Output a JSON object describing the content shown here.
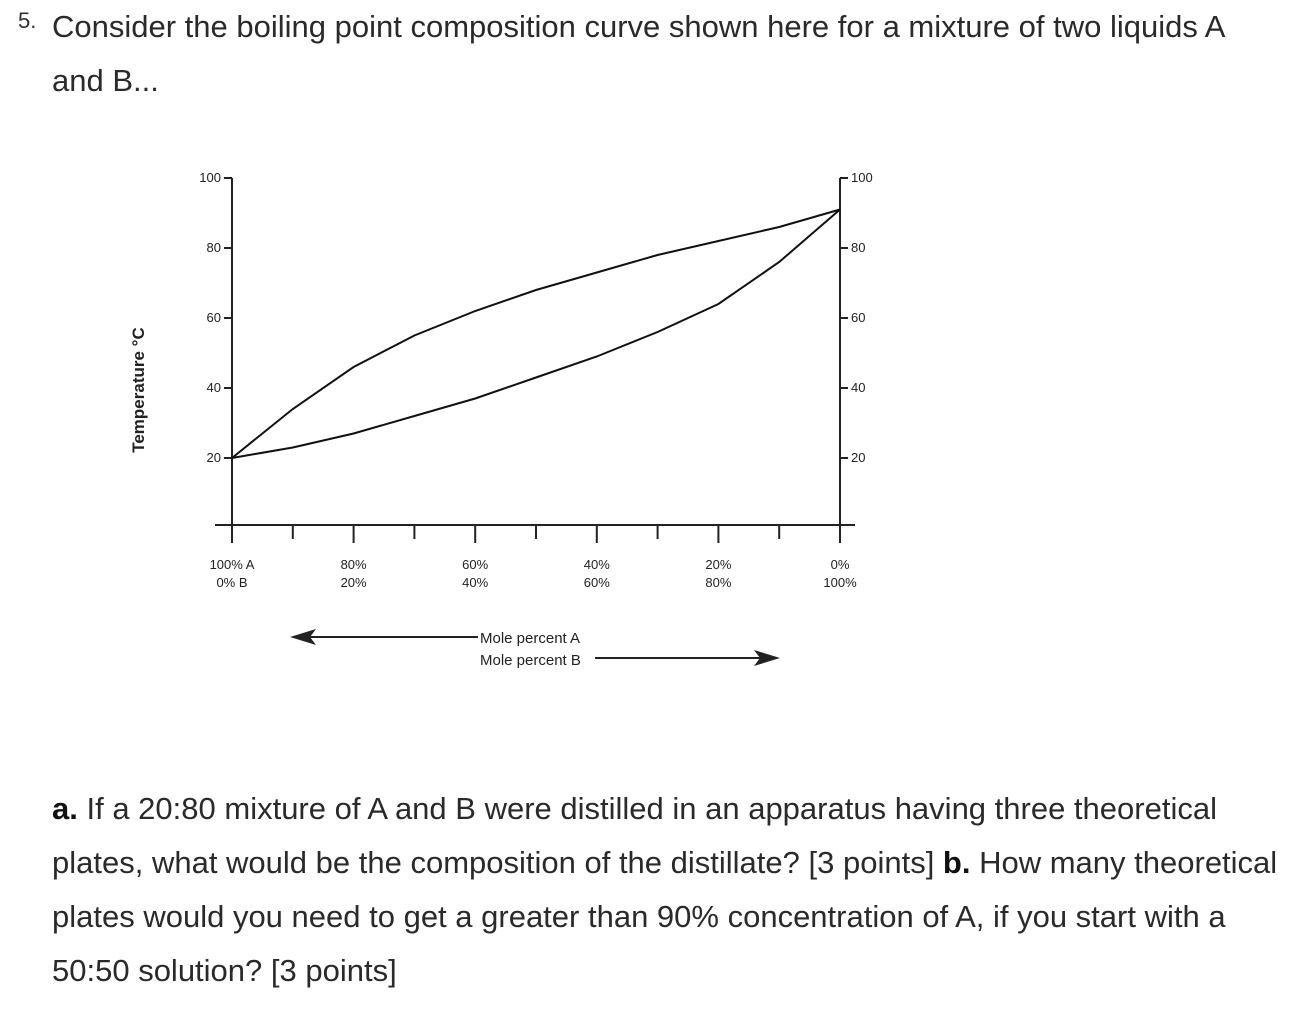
{
  "question": {
    "number": "5.",
    "intro": "Consider the boiling point composition curve shown here for a mixture of two liquids A and B...",
    "part_a_label": "a.",
    "part_a_text": "If a 20:80 mixture of A and B were distilled in an apparatus having three theoretical plates, what would be the composition of the distillate? [3 points]",
    "part_b_label": "b.",
    "part_b_text": "How many theoretical plates would you need to get a greater than 90% concentration of A, if you start with a 50:50 solution? [3 points]"
  },
  "chart_data": {
    "type": "line",
    "ylabel": "Temperature °C",
    "ylim": [
      0,
      100
    ],
    "y_ticks": [
      "20",
      "40",
      "60",
      "80",
      "100"
    ],
    "x_ticks_a": [
      "100% A",
      "80%",
      "60%",
      "40%",
      "20%",
      "0%"
    ],
    "x_ticks_b": [
      "0% B",
      "20%",
      "40%",
      "60%",
      "80%",
      "100%"
    ],
    "x_values": [
      0,
      20,
      40,
      60,
      80,
      100
    ],
    "xlabel_a": "Mole percent A",
    "xlabel_b": "Mole percent B",
    "series": [
      {
        "x": [
          0,
          10,
          20,
          30,
          40,
          50,
          60,
          70,
          80,
          90,
          100
        ],
        "y": [
          20,
          34,
          46,
          55,
          62,
          68,
          73,
          78,
          82,
          86,
          91
        ]
      },
      {
        "x": [
          0,
          10,
          20,
          30,
          40,
          50,
          60,
          70,
          80,
          90,
          100
        ],
        "y": [
          20,
          23,
          27,
          32,
          37,
          43,
          49,
          56,
          64,
          76,
          91
        ]
      }
    ],
    "grid": false,
    "legend": "none"
  }
}
